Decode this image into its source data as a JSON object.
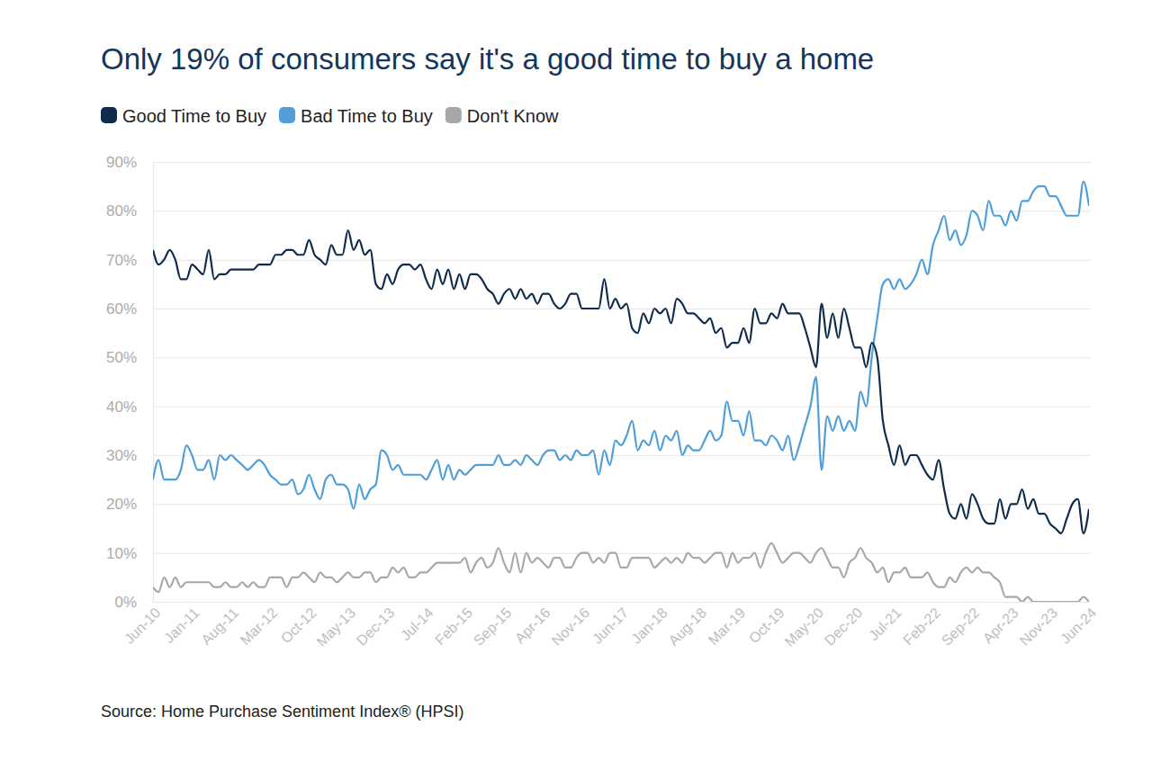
{
  "chart_data": {
    "type": "line",
    "title": "Only 19% of consumers say it's a good time to buy a home",
    "source": "Source: Home Purchase Sentiment Index® (HPSI)",
    "legend": "top",
    "grid": true,
    "categories": [
      "Jun-10",
      null,
      null,
      null,
      null,
      null,
      null,
      "Jan-11",
      null,
      null,
      null,
      null,
      null,
      null,
      "Aug-11",
      null,
      null,
      null,
      null,
      null,
      null,
      "Mar-12",
      null,
      null,
      null,
      null,
      null,
      null,
      "Oct-12",
      null,
      null,
      null,
      null,
      null,
      null,
      "May-13",
      null,
      null,
      null,
      null,
      null,
      null,
      "Dec-13",
      null,
      null,
      null,
      null,
      null,
      null,
      "Jul-14",
      null,
      null,
      null,
      null,
      null,
      null,
      "Feb-15",
      null,
      null,
      null,
      null,
      null,
      null,
      "Sep-15",
      null,
      null,
      null,
      null,
      null,
      null,
      "Apr-16",
      null,
      null,
      null,
      null,
      null,
      null,
      "Nov-16",
      null,
      null,
      null,
      null,
      null,
      null,
      "Jun-17",
      null,
      null,
      null,
      null,
      null,
      null,
      "Jan-18",
      null,
      null,
      null,
      null,
      null,
      null,
      "Aug-18",
      null,
      null,
      null,
      null,
      null,
      null,
      "Mar-19",
      null,
      null,
      null,
      null,
      null,
      null,
      "Oct-19",
      null,
      null,
      null,
      null,
      null,
      null,
      "May-20",
      null,
      null,
      null,
      null,
      null,
      null,
      "Dec-20",
      null,
      null,
      null,
      null,
      null,
      null,
      "Jul-21",
      null,
      null,
      null,
      null,
      null,
      null,
      "Feb-22",
      null,
      null,
      null,
      null,
      null,
      null,
      "Sep-22",
      null,
      null,
      null,
      null,
      null,
      null,
      "Apr-23",
      null,
      null,
      null,
      null,
      null,
      null,
      "Nov-23",
      null,
      null,
      null,
      null,
      null,
      null,
      "Jun-24"
    ],
    "ylim": [
      0,
      90
    ],
    "yticks": [
      {
        "value": 0,
        "label": "0%"
      },
      {
        "value": 10,
        "label": "10%"
      },
      {
        "value": 20,
        "label": "20%"
      },
      {
        "value": 30,
        "label": "30%"
      },
      {
        "value": 40,
        "label": "40%"
      },
      {
        "value": 50,
        "label": "50%"
      },
      {
        "value": 60,
        "label": "60%"
      },
      {
        "value": 70,
        "label": "70%"
      },
      {
        "value": 80,
        "label": "80%"
      },
      {
        "value": 90,
        "label": "90%"
      }
    ],
    "series": [
      {
        "name": "Good Time to Buy",
        "color": "#0f2c4c",
        "values": [
          72,
          69,
          70,
          72,
          70,
          66,
          66,
          69,
          68,
          67,
          72,
          66,
          67,
          67,
          68,
          68,
          68,
          68,
          68,
          69,
          69,
          69,
          71,
          71,
          72,
          72,
          71,
          71,
          74,
          71,
          70,
          69,
          73,
          71,
          71,
          76,
          72,
          74,
          71,
          72,
          65,
          64,
          67,
          65,
          68,
          69,
          69,
          68,
          69,
          66,
          64,
          68,
          65,
          68,
          64,
          67,
          64,
          67,
          67,
          66,
          64,
          63,
          61,
          63,
          64,
          62,
          64,
          62,
          63,
          61,
          63,
          63,
          61,
          60,
          61,
          63,
          63,
          60,
          60,
          60,
          60,
          66,
          60,
          62,
          60,
          61,
          56,
          55,
          59,
          57,
          60,
          59,
          60,
          57,
          62,
          61,
          59,
          59,
          58,
          57,
          58,
          55,
          56,
          52,
          53,
          53,
          56,
          53,
          60,
          57,
          57,
          59,
          58,
          61,
          59,
          59,
          59,
          56,
          52,
          48,
          61,
          54,
          59,
          54,
          60,
          56,
          52,
          52,
          48,
          53,
          50,
          37,
          32,
          28,
          32,
          28,
          30,
          30,
          28,
          26,
          25,
          29,
          23,
          18,
          17,
          20,
          17,
          22,
          20,
          17,
          16,
          16,
          21,
          17,
          20,
          20,
          23,
          19,
          21,
          18,
          18,
          16,
          15,
          14,
          17,
          20,
          21,
          14,
          19
        ]
      },
      {
        "name": "Bad Time to Buy",
        "color": "#4f9ed9",
        "values": [
          25,
          29,
          25,
          25,
          25,
          27,
          32,
          30,
          27,
          27,
          29,
          25,
          30,
          29,
          30,
          29,
          28,
          27,
          28,
          29,
          28,
          26,
          25,
          24,
          24,
          25,
          22,
          23,
          26,
          23,
          21,
          25,
          26,
          24,
          24,
          23,
          19,
          24,
          21,
          23,
          24,
          31,
          30,
          27,
          28,
          26,
          26,
          26,
          26,
          25,
          27,
          29,
          25,
          28,
          25,
          27,
          26,
          27,
          28,
          28,
          28,
          28,
          30,
          28,
          28,
          29,
          28,
          30,
          29,
          28,
          30,
          31,
          31,
          29,
          30,
          29,
          31,
          30,
          30,
          31,
          26,
          31,
          28,
          33,
          32,
          34,
          37,
          31,
          33,
          32,
          35,
          31,
          34,
          33,
          35,
          30,
          32,
          31,
          31,
          33,
          35,
          33,
          34,
          41,
          37,
          37,
          34,
          39,
          33,
          33,
          32,
          34,
          33,
          31,
          34,
          29,
          32,
          36,
          40,
          46,
          27,
          38,
          35,
          38,
          35,
          37,
          35,
          43,
          40,
          50,
          58,
          65,
          66,
          64,
          66,
          64,
          65,
          67,
          70,
          67,
          73,
          76,
          79,
          74,
          76,
          73,
          75,
          80,
          79,
          76,
          82,
          79,
          79,
          77,
          80,
          78,
          82,
          82,
          84,
          85,
          85,
          83,
          83,
          81,
          79,
          79,
          79,
          86,
          81
        ]
      },
      {
        "name": "Don't Know",
        "color": "#a8a8a8",
        "values": [
          3,
          2,
          5,
          3,
          5,
          3,
          4,
          4,
          4,
          4,
          4,
          3,
          3,
          4,
          3,
          3,
          4,
          3,
          4,
          3,
          3,
          5,
          5,
          5,
          3,
          5,
          5,
          6,
          5,
          4,
          6,
          5,
          5,
          4,
          5,
          6,
          5,
          5,
          6,
          6,
          4,
          5,
          5,
          7,
          6,
          7,
          5,
          5,
          6,
          6,
          7,
          8,
          8,
          8,
          8,
          8,
          9,
          6,
          8,
          9,
          7,
          8,
          11,
          8,
          6,
          10,
          6,
          10,
          8,
          9,
          8,
          7,
          9,
          9,
          7,
          7,
          9,
          10,
          10,
          8,
          9,
          8,
          10,
          10,
          7,
          7,
          9,
          9,
          9,
          9,
          7,
          8,
          9,
          8,
          9,
          8,
          10,
          9,
          9,
          8,
          9,
          10,
          10,
          7,
          10,
          8,
          9,
          9,
          10,
          7,
          10,
          12,
          10,
          8,
          9,
          10,
          10,
          9,
          8,
          10,
          11,
          9,
          7,
          7,
          5,
          8,
          9,
          11,
          9,
          8,
          6,
          7,
          4,
          6,
          6,
          7,
          5,
          5,
          5,
          6,
          4,
          3,
          3,
          5,
          4,
          6,
          7,
          6,
          7,
          6,
          6,
          5,
          4,
          1,
          1,
          1,
          0,
          1,
          0,
          0,
          0,
          0,
          0,
          0,
          0,
          0,
          0,
          1,
          0
        ]
      }
    ]
  }
}
